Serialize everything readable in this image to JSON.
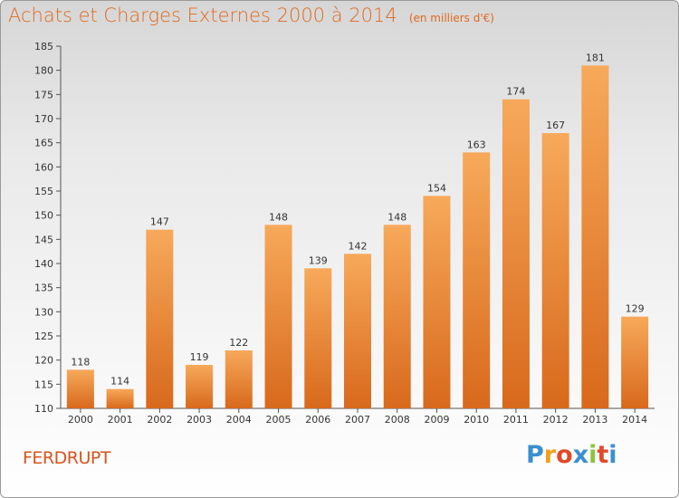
{
  "title": "Achats et Charges Externes 2000 à 2014",
  "unit_note": "(en milliers d'€)",
  "commune": "FERDRUPT",
  "brand": "Proxiti",
  "brand_colors": [
    "#3a8fd0",
    "#f0a020",
    "#e04a2a",
    "#3a8fd0",
    "#8ac43a",
    "#e04a2a",
    "#3a8fd0"
  ],
  "colors": {
    "bar_top": "#f7a95a",
    "bar_bottom": "#d8691c",
    "title": "#e06a1e",
    "commune": "#d8541c"
  },
  "chart_data": {
    "type": "bar",
    "title": "Achats et Charges Externes 2000 à 2014",
    "subtitle": "(en milliers d'€)",
    "xlabel": "",
    "ylabel": "",
    "categories": [
      "2000",
      "2001",
      "2002",
      "2003",
      "2004",
      "2005",
      "2006",
      "2007",
      "2008",
      "2009",
      "2010",
      "2011",
      "2012",
      "2013",
      "2014"
    ],
    "values": [
      118,
      114,
      147,
      119,
      122,
      148,
      139,
      142,
      148,
      154,
      163,
      174,
      167,
      181,
      129
    ],
    "ylim": [
      110,
      185
    ],
    "yticks": [
      110,
      115,
      120,
      125,
      130,
      135,
      140,
      145,
      150,
      155,
      160,
      165,
      170,
      175,
      180,
      185
    ],
    "grid": false,
    "data_labels": true
  }
}
